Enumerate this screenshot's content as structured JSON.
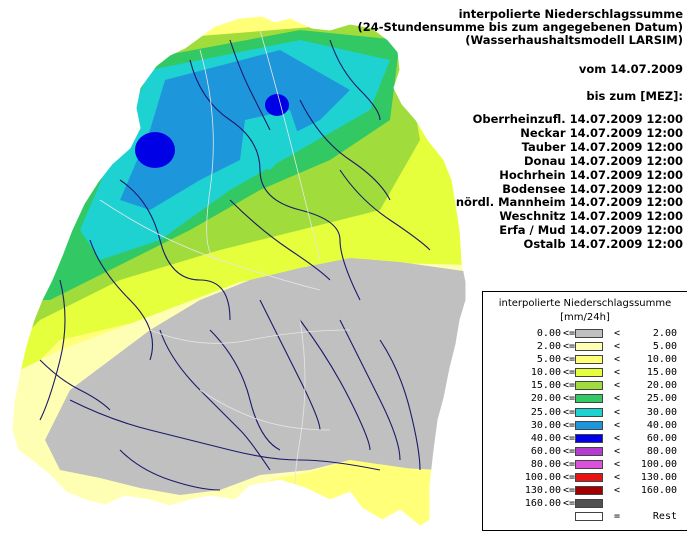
{
  "header": {
    "title_lines": [
      "interpolierte Niederschlagssumme",
      "(24-Stundensumme bis zum angegebenen Datum)",
      "(Wasserhaushaltsmodell LARSIM)"
    ],
    "date_line": "vom 14.07.2009",
    "until_line": "bis zum [MEZ]:"
  },
  "basins": [
    {
      "name": "Oberrheinzufl.",
      "datetime": "14.07.2009 12:00"
    },
    {
      "name": "Neckar",
      "datetime": "14.07.2009 12:00"
    },
    {
      "name": "Tauber",
      "datetime": "14.07.2009 12:00"
    },
    {
      "name": "Donau",
      "datetime": "14.07.2009 12:00"
    },
    {
      "name": "Hochrhein",
      "datetime": "14.07.2009 12:00"
    },
    {
      "name": "Bodensee",
      "datetime": "14.07.2009 12:00"
    },
    {
      "name": "nördl. Mannheim",
      "datetime": "14.07.2009 12:00"
    },
    {
      "name": "Weschnitz",
      "datetime": "14.07.2009 12:00"
    },
    {
      "name": "Erfa / Mud",
      "datetime": "14.07.2009 12:00"
    },
    {
      "name": "Ostalb",
      "datetime": "14.07.2009 12:00"
    }
  ],
  "legend": {
    "title": "interpolierte Niederschlagssumme",
    "unit": "[mm/24h]",
    "classes": [
      {
        "low": "0.00",
        "op1": "<=",
        "color": "#c0c0c0",
        "op2": "<",
        "high": "2.00"
      },
      {
        "low": "2.00",
        "op1": "<=",
        "color": "#ffffb4",
        "op2": "<",
        "high": "5.00"
      },
      {
        "low": "5.00",
        "op1": "<=",
        "color": "#ffff78",
        "op2": "<",
        "high": "10.00"
      },
      {
        "low": "10.00",
        "op1": "<=",
        "color": "#e6ff3c",
        "op2": "<",
        "high": "15.00"
      },
      {
        "low": "15.00",
        "op1": "<=",
        "color": "#a0dc3c",
        "op2": "<",
        "high": "20.00"
      },
      {
        "low": "20.00",
        "op1": "<=",
        "color": "#32c864",
        "op2": "<",
        "high": "25.00"
      },
      {
        "low": "25.00",
        "op1": "<=",
        "color": "#1ed2d2",
        "op2": "<",
        "high": "30.00"
      },
      {
        "low": "30.00",
        "op1": "<=",
        "color": "#1e96dc",
        "op2": "<",
        "high": "40.00"
      },
      {
        "low": "40.00",
        "op1": "<=",
        "color": "#0000e6",
        "op2": "<",
        "high": "60.00"
      },
      {
        "low": "60.00",
        "op1": "<=",
        "color": "#b43cd2",
        "op2": "<",
        "high": "80.00"
      },
      {
        "low": "80.00",
        "op1": "<=",
        "color": "#dc50dc",
        "op2": "<",
        "high": "100.00"
      },
      {
        "low": "100.00",
        "op1": "<=",
        "color": "#e61414",
        "op2": "<",
        "high": "130.00"
      },
      {
        "low": "130.00",
        "op1": "<=",
        "color": "#a00000",
        "op2": "<",
        "high": "160.00"
      },
      {
        "low": "160.00",
        "op1": "<=",
        "color": "#505050",
        "op2": "",
        "high": ""
      },
      {
        "low": "",
        "op1": "",
        "color": "#ffffff",
        "op2": "=",
        "high": "Rest"
      }
    ]
  }
}
